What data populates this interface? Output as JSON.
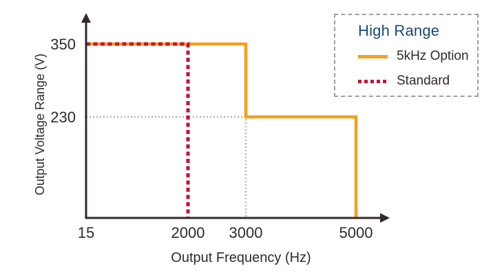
{
  "chart_data": {
    "type": "line",
    "subtype": "step",
    "xlabel": "Output Frequency (Hz)",
    "ylabel": "Output Voltage Range (V)",
    "x_ticks": [
      "15",
      "2000",
      "3000",
      "5000"
    ],
    "y_ticks": [
      "350",
      "230"
    ],
    "x_tick_values": [
      15,
      2000,
      3000,
      5000
    ],
    "y_tick_values": [
      350,
      230
    ],
    "xlim": [
      15,
      5000
    ],
    "ylim": [
      0,
      350
    ],
    "grid": false,
    "axis_color": "#33282B",
    "series": [
      {
        "name": "5kHz Option",
        "color": "#F5A01E",
        "line_style": "solid",
        "points": [
          [
            15,
            350
          ],
          [
            3000,
            350
          ],
          [
            3000,
            230
          ],
          [
            5000,
            230
          ],
          [
            5000,
            0
          ]
        ]
      },
      {
        "name": "Standard",
        "color": "#CC0F2F",
        "line_style": "dashed",
        "points": [
          [
            15,
            350
          ],
          [
            2000,
            350
          ],
          [
            2000,
            0
          ]
        ]
      }
    ],
    "reference_lines": [
      {
        "color": "#B5B5B5",
        "line_style": "dotted",
        "points": [
          [
            15,
            230
          ],
          [
            3000,
            230
          ],
          [
            3000,
            0
          ]
        ]
      }
    ],
    "legend": {
      "title": "High Range",
      "title_color": "#164878",
      "position": "top-right",
      "border_style": "dashed",
      "entries": [
        "5kHz Option",
        "Standard"
      ]
    }
  }
}
